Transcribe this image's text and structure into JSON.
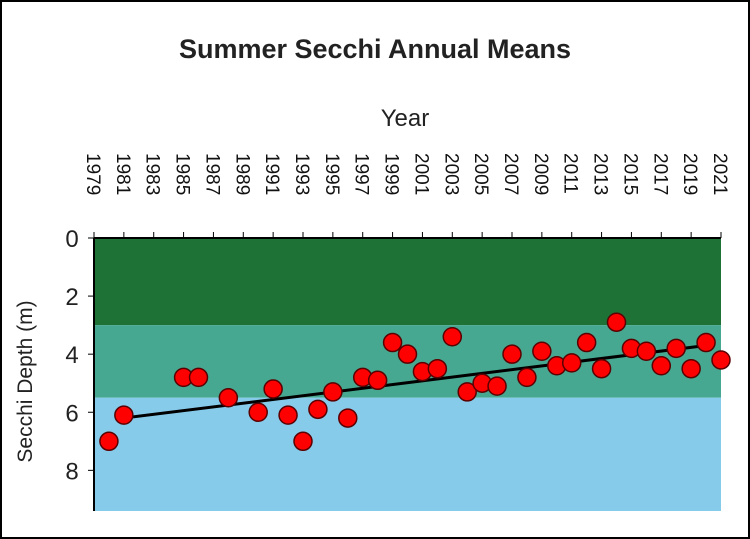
{
  "chart_data": {
    "type": "scatter",
    "title": "Summer Secchi Annual Means",
    "xlabel": "Year",
    "ylabel": "Secchi Depth (m)",
    "x_ticks": [
      "1979",
      "1981",
      "1983",
      "1985",
      "1987",
      "1989",
      "1991",
      "1993",
      "1995",
      "1997",
      "1999",
      "2001",
      "2003",
      "2005",
      "2007",
      "2009",
      "2011",
      "2013",
      "2015",
      "2017",
      "2019",
      "2021"
    ],
    "y_ticks": [
      0,
      2,
      4,
      6,
      8
    ],
    "xlim": [
      1979,
      2021
    ],
    "ylim": [
      0,
      9.4
    ],
    "y_inverted": true,
    "x_axis_position": "top",
    "bands": [
      {
        "from": 0,
        "to": 3.0,
        "color": "#1e7236"
      },
      {
        "from": 3.0,
        "to": 5.5,
        "color": "#46a890"
      },
      {
        "from": 5.5,
        "to": 9.4,
        "color": "#87cbeb"
      }
    ],
    "marker_color": "#ff0000",
    "trend_color": "#000000",
    "x": [
      1980,
      1981,
      1985,
      1986,
      1988,
      1990,
      1991,
      1992,
      1993,
      1994,
      1995,
      1996,
      1997,
      1998,
      1999,
      2000,
      2001,
      2002,
      2003,
      2004,
      2005,
      2006,
      2007,
      2008,
      2009,
      2010,
      2011,
      2012,
      2013,
      2014,
      2015,
      2016,
      2017,
      2018,
      2019,
      2020,
      2021
    ],
    "y": [
      7.0,
      6.1,
      4.8,
      4.8,
      5.5,
      6.0,
      5.2,
      6.1,
      7.0,
      5.9,
      5.3,
      6.2,
      4.8,
      4.9,
      3.6,
      4.0,
      4.6,
      4.5,
      3.4,
      5.3,
      5.0,
      5.1,
      4.0,
      4.8,
      3.9,
      4.4,
      4.3,
      3.6,
      4.5,
      2.9,
      3.8,
      3.9,
      4.4,
      3.8,
      4.5,
      3.6,
      4.2
    ],
    "trend": {
      "x": [
        1981,
        2020
      ],
      "y": [
        6.2,
        3.7
      ]
    }
  }
}
